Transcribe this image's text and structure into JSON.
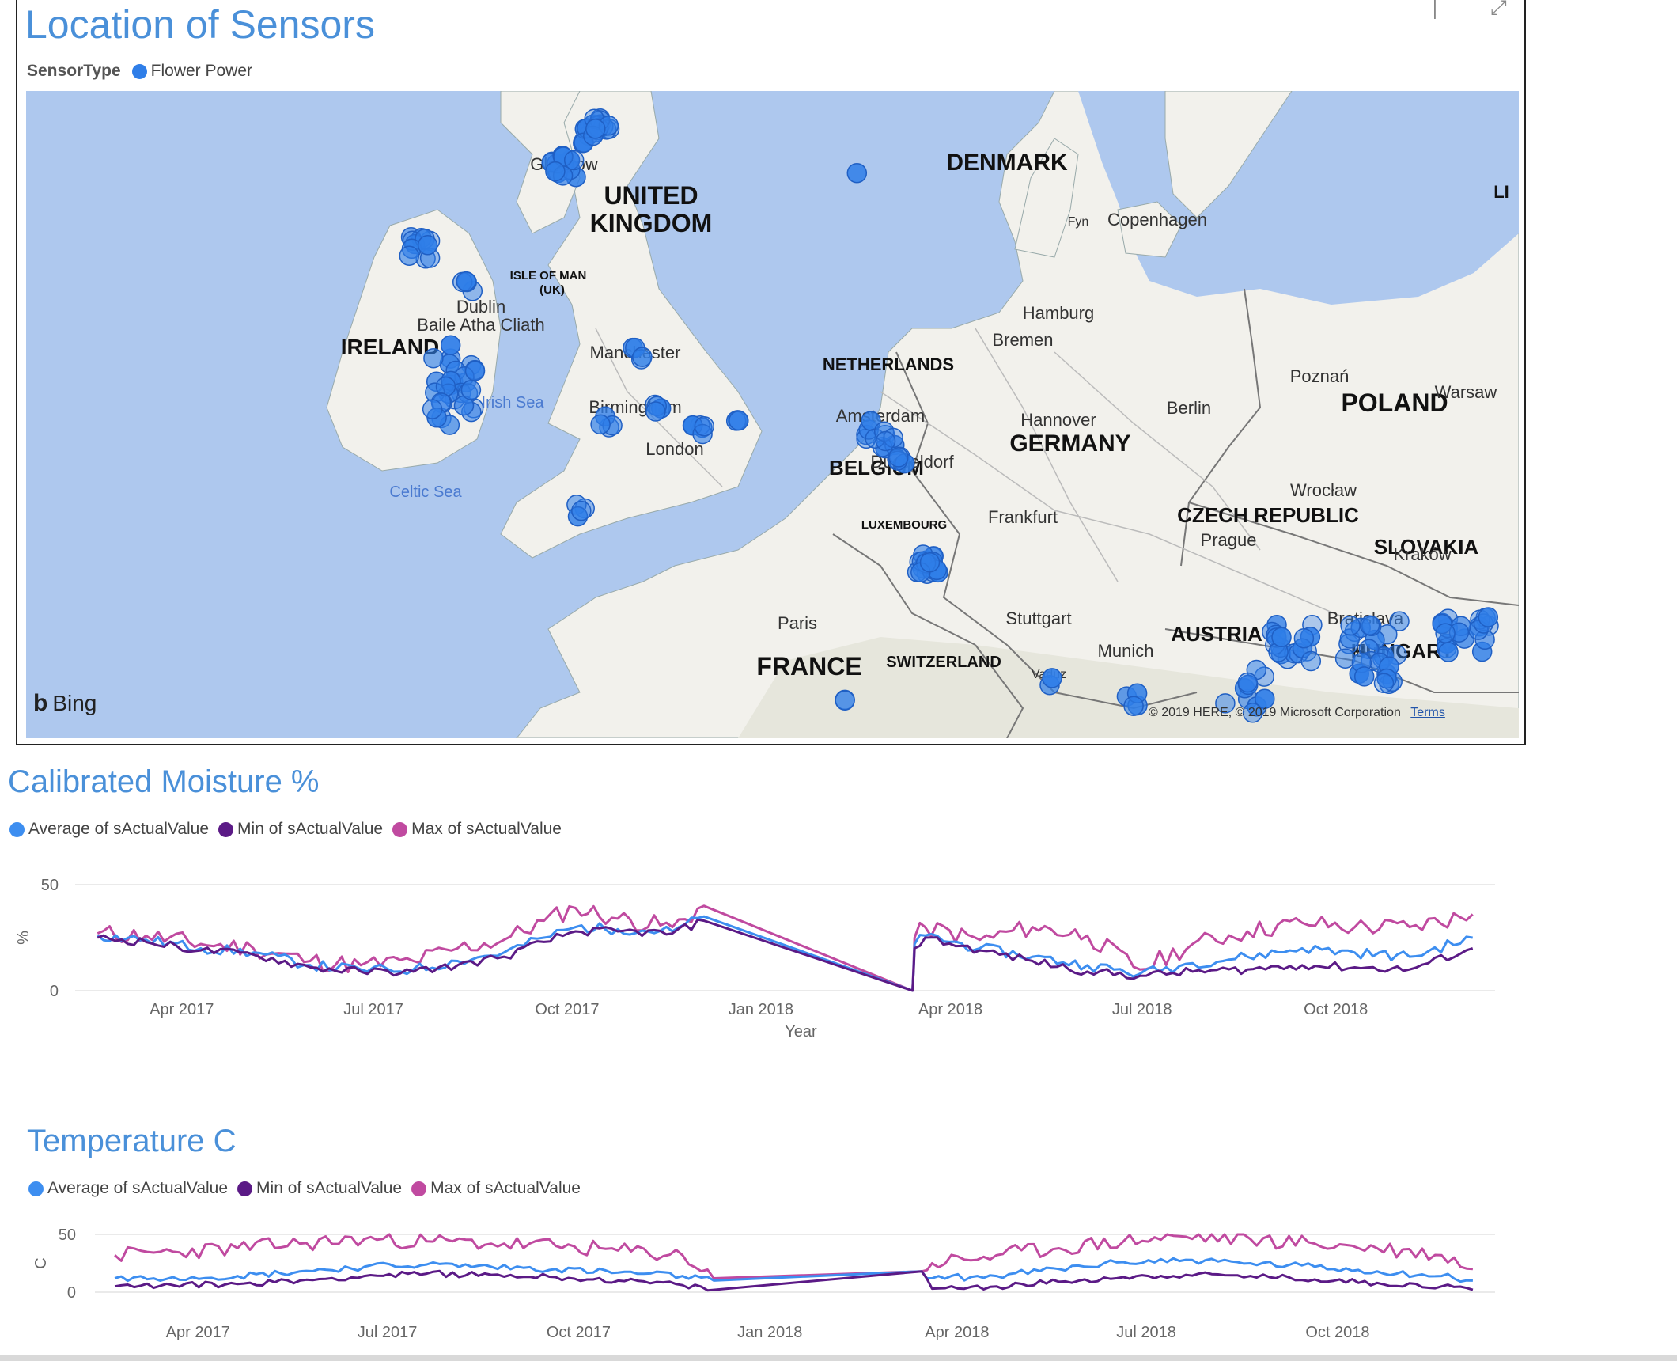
{
  "map": {
    "title": "Location of Sensors",
    "legend_label": "SensorType",
    "legend_item": "Flower Power",
    "legend_color": "#2f7ee8",
    "provider": "Bing",
    "copyright": "© 2019 HERE, © 2019 Microsoft Corporation",
    "terms": "Terms",
    "countries": [
      "DENMARK",
      "UNITED",
      "KINGDOM",
      "IRELAND",
      "NETHERLANDS",
      "BELGIUM",
      "GERMANY",
      "POLAND",
      "CZECH REPUBLIC",
      "SLOVAKIA",
      "AUSTRIA",
      "HUNGARY",
      "FRANCE",
      "SWITZERLAND",
      "LUXEMBOURG",
      "ISLE OF MAN",
      "(UK)",
      "LI"
    ],
    "cities": [
      "Glasgow",
      "Copenhagen",
      "Fyn",
      "Dublin",
      "Baile Atha Cliath",
      "Manchester",
      "Birmingham",
      "London",
      "Hamburg",
      "Bremen",
      "Hannover",
      "Berlin",
      "Amsterdam",
      "Dusseldorf",
      "Frankfurt",
      "Prague",
      "Poznań",
      "Warsaw",
      "Wrocław",
      "Kraków",
      "Stuttgart",
      "Munich",
      "Vaduz",
      "Bratislava",
      "Paris",
      "Bud"
    ],
    "seas": [
      "Irish Sea",
      "Celtic Sea"
    ],
    "colors": {
      "water": "#aec8ee",
      "land": "#f2f1ec",
      "border": "#666666",
      "dot": "#2f7ee8"
    }
  },
  "legend_series": {
    "avg": "Average of sActualValue",
    "min": "Min of sActualValue",
    "max": "Max of sActualValue",
    "avg_color": "#3d8ef0",
    "min_color": "#5b1a86",
    "max_color": "#c04aa0"
  },
  "chart_data": [
    {
      "type": "line",
      "title": "Calibrated Moisture  %",
      "ylabel": "%",
      "xlabel": "Year",
      "ylim": [
        0,
        50
      ],
      "yticks": [
        "50",
        "0"
      ],
      "xticks": [
        "Apr 2017",
        "Jul 2017",
        "Oct 2017",
        "Jan 2018",
        "Apr 2018",
        "Jul 2018",
        "Oct 2018"
      ],
      "x_range": [
        "2017-02-15",
        "2018-12-10"
      ],
      "grid": true,
      "legend_position": "top-left",
      "series": [
        {
          "name": "Average of sActualValue",
          "x": [
            "2017-02-20",
            "2017-03-15",
            "2017-04-10",
            "2017-05-05",
            "2017-06-01",
            "2017-06-25",
            "2017-07-20",
            "2017-08-10",
            "2017-09-01",
            "2017-09-20",
            "2017-10-05",
            "2017-10-25",
            "2017-11-20",
            "2017-12-05",
            "2018-03-14",
            "2018-03-15",
            "2018-03-20",
            "2018-04-15",
            "2018-05-10",
            "2018-06-05",
            "2018-06-30",
            "2018-07-25",
            "2018-08-20",
            "2018-09-15",
            "2018-10-10",
            "2018-11-05",
            "2018-12-05"
          ],
          "y": [
            26,
            24,
            20,
            18,
            12,
            10,
            10,
            14,
            18,
            25,
            30,
            29,
            28,
            35,
            0,
            22,
            26,
            20,
            16,
            12,
            8,
            13,
            16,
            20,
            18,
            16,
            25
          ]
        },
        {
          "name": "Min of sActualValue",
          "x": [
            "2017-02-20",
            "2017-03-15",
            "2017-04-10",
            "2017-05-05",
            "2017-06-01",
            "2017-06-25",
            "2017-07-20",
            "2017-08-10",
            "2017-09-01",
            "2017-09-20",
            "2017-10-05",
            "2017-10-25",
            "2017-11-20",
            "2017-12-05",
            "2018-03-14",
            "2018-03-15",
            "2018-03-20",
            "2018-04-15",
            "2018-05-10",
            "2018-06-05",
            "2018-06-30",
            "2018-07-25",
            "2018-08-20",
            "2018-09-15",
            "2018-10-10",
            "2018-11-05",
            "2018-12-05"
          ],
          "y": [
            25,
            23,
            19,
            17,
            11,
            9,
            9,
            12,
            16,
            23,
            28,
            28,
            27,
            33,
            0,
            20,
            25,
            19,
            14,
            9,
            7,
            9,
            10,
            12,
            11,
            10,
            20
          ]
        },
        {
          "name": "Max of sActualValue",
          "x": [
            "2017-02-20",
            "2017-03-15",
            "2017-04-10",
            "2017-05-05",
            "2017-06-01",
            "2017-06-25",
            "2017-07-20",
            "2017-08-10",
            "2017-09-01",
            "2017-09-20",
            "2017-10-05",
            "2017-10-25",
            "2017-11-20",
            "2017-12-05",
            "2018-03-14",
            "2018-03-15",
            "2018-03-20",
            "2018-04-15",
            "2018-05-10",
            "2018-06-05",
            "2018-06-30",
            "2018-07-25",
            "2018-08-20",
            "2018-09-15",
            "2018-10-10",
            "2018-11-05",
            "2018-12-05"
          ],
          "y": [
            27,
            26,
            22,
            20,
            14,
            12,
            14,
            20,
            24,
            33,
            39,
            34,
            30,
            40,
            0,
            25,
            30,
            24,
            30,
            26,
            10,
            22,
            28,
            32,
            30,
            30,
            36
          ]
        }
      ]
    },
    {
      "type": "line",
      "title": "Temperature C",
      "ylabel": "C",
      "xlabel": "",
      "ylim": [
        0,
        50
      ],
      "yticks": [
        "50",
        "0"
      ],
      "xticks": [
        "Apr 2017",
        "Jul 2017",
        "Oct 2017",
        "Jan 2018",
        "Apr 2018",
        "Jul 2018",
        "Oct 2018"
      ],
      "x_range": [
        "2017-02-15",
        "2018-12-10"
      ],
      "grid": true,
      "legend_position": "top-left",
      "series": [
        {
          "name": "Average of sActualValue",
          "x": [
            "2017-02-20",
            "2017-03-20",
            "2017-04-20",
            "2017-05-20",
            "2017-06-20",
            "2017-07-20",
            "2017-08-20",
            "2017-09-20",
            "2017-10-20",
            "2017-11-20",
            "2017-12-05",
            "2018-03-15",
            "2018-03-20",
            "2018-04-20",
            "2018-05-20",
            "2018-06-20",
            "2018-07-20",
            "2018-08-20",
            "2018-09-20",
            "2018-10-20",
            "2018-11-20",
            "2018-12-05"
          ],
          "y": [
            12,
            13,
            14,
            18,
            22,
            24,
            22,
            20,
            17,
            14,
            10,
            18,
            12,
            14,
            20,
            26,
            28,
            25,
            22,
            18,
            14,
            10
          ]
        },
        {
          "name": "Min of sActualValue",
          "x": [
            "2017-02-20",
            "2017-03-20",
            "2017-04-20",
            "2017-05-20",
            "2017-06-20",
            "2017-07-20",
            "2017-08-20",
            "2017-09-20",
            "2017-10-20",
            "2017-11-20",
            "2017-12-05",
            "2018-03-15",
            "2018-03-20",
            "2018-04-20",
            "2018-05-20",
            "2018-06-20",
            "2018-07-20",
            "2018-08-20",
            "2018-09-20",
            "2018-10-20",
            "2018-11-20",
            "2018-12-05"
          ],
          "y": [
            5,
            6,
            7,
            10,
            14,
            16,
            15,
            13,
            10,
            6,
            2,
            18,
            3,
            5,
            9,
            13,
            15,
            14,
            11,
            8,
            5,
            2
          ]
        },
        {
          "name": "Max of sActualValue",
          "x": [
            "2017-02-20",
            "2017-03-20",
            "2017-04-20",
            "2017-05-20",
            "2017-06-20",
            "2017-07-20",
            "2017-08-20",
            "2017-09-20",
            "2017-10-20",
            "2017-11-20",
            "2017-12-05",
            "2018-03-15",
            "2018-03-20",
            "2018-04-20",
            "2018-05-20",
            "2018-06-20",
            "2018-07-20",
            "2018-08-20",
            "2018-09-20",
            "2018-10-20",
            "2018-11-20",
            "2018-12-05"
          ],
          "y": [
            32,
            35,
            38,
            42,
            46,
            44,
            42,
            40,
            36,
            32,
            12,
            18,
            25,
            32,
            38,
            44,
            48,
            46,
            42,
            38,
            32,
            20
          ]
        }
      ]
    }
  ]
}
